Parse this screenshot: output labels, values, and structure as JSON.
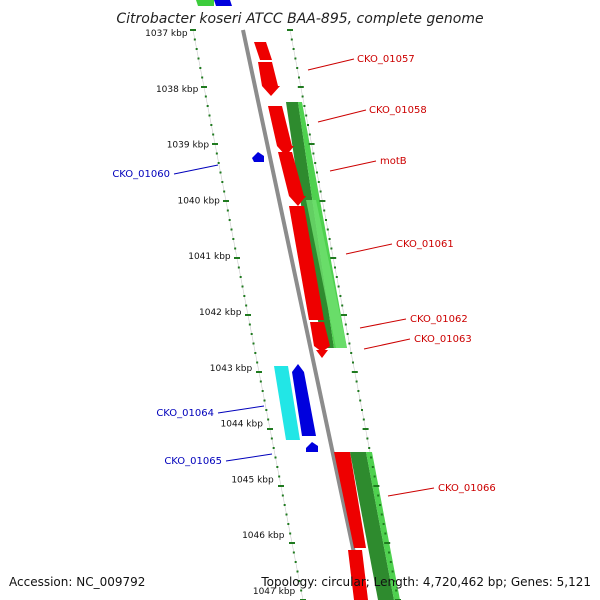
{
  "title": "Citrobacter koseri ATCC BAA-895, complete genome",
  "footer": {
    "accession": "Accession: NC_009792",
    "summary": "Topology: circular; Length: 4,720,462 bp; Genes: 5,121"
  },
  "colors": {
    "backbone": "#8c8c8c",
    "tick": "#1f7a1f",
    "forward_cds": "#ee0000",
    "forward_dark": "#c00000",
    "reverse_cds": "#0000dd",
    "reverse_rna": "#22e6e6",
    "gc_dark": "#2e8b2e",
    "gc_light": "#3ccc3c",
    "label_forward": "#cc0000",
    "label_reverse": "#0000bb"
  },
  "ticks": [
    "1037 kbp",
    "1038 kbp",
    "1039 kbp",
    "1040 kbp",
    "1041 kbp",
    "1042 kbp",
    "1043 kbp",
    "1044 kbp",
    "1045 kbp",
    "1046 kbp",
    "1047 kbp"
  ],
  "genes": [
    {
      "label": "CKO_01057",
      "strand": "forward"
    },
    {
      "label": "CKO_01058",
      "strand": "forward"
    },
    {
      "label": "motB",
      "strand": "forward"
    },
    {
      "label": "CKO_01060",
      "strand": "reverse"
    },
    {
      "label": "CKO_01061",
      "strand": "forward"
    },
    {
      "label": "CKO_01062",
      "strand": "forward"
    },
    {
      "label": "CKO_01063",
      "strand": "forward"
    },
    {
      "label": "CKO_01064",
      "strand": "reverse"
    },
    {
      "label": "CKO_01065",
      "strand": "reverse"
    },
    {
      "label": "CKO_01066",
      "strand": "forward"
    }
  ]
}
